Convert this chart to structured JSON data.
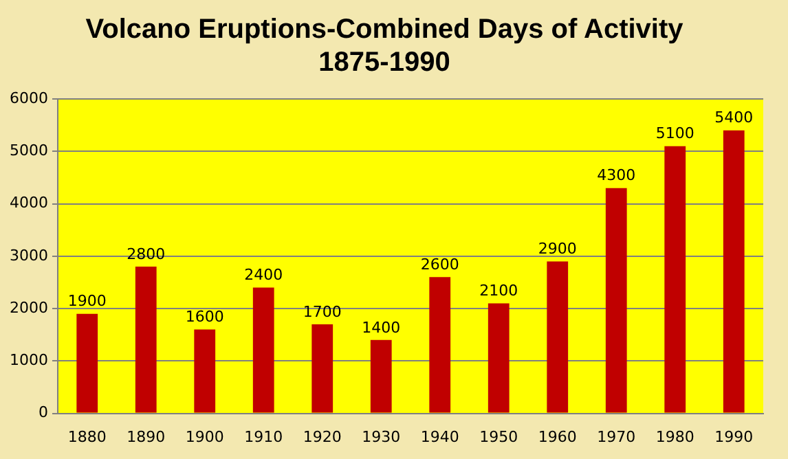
{
  "chart_data": {
    "type": "bar",
    "title": "Volcano Eruptions-Combined Days of Activity\n1875-1990",
    "categories": [
      "1880",
      "1890",
      "1900",
      "1910",
      "1920",
      "1930",
      "1940",
      "1950",
      "1960",
      "1970",
      "1980",
      "1990"
    ],
    "values": [
      1900,
      2800,
      1600,
      2400,
      1700,
      1400,
      2600,
      2100,
      2900,
      4300,
      5100,
      5400
    ],
    "color": "#c00000",
    "ylim": [
      0,
      6000
    ],
    "yticks": [
      0,
      1000,
      2000,
      3000,
      4000,
      5000,
      6000
    ],
    "grid": "y",
    "data_labels": true,
    "legend": false
  }
}
